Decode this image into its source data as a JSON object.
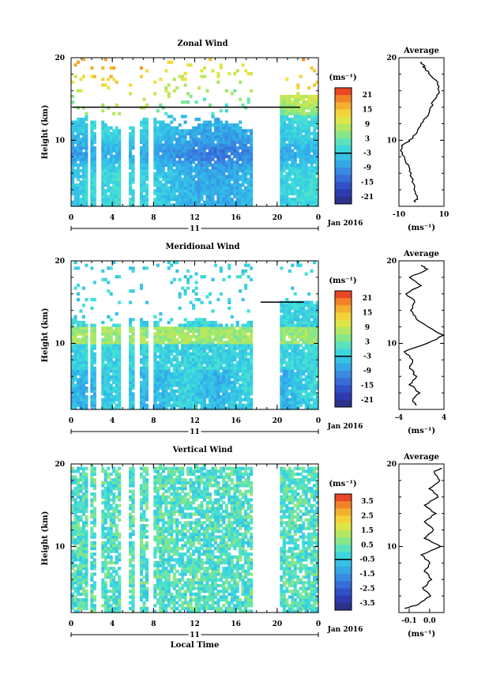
{
  "chart_data": [
    {
      "type": "heatmap",
      "title": "Zonal Wind",
      "ylabel": "Height (km)",
      "xlabel": "",
      "x_ticks": [
        "0",
        "4",
        "8",
        "12",
        "16",
        "20",
        "0"
      ],
      "y_ticks": [
        "10",
        "20"
      ],
      "ylim": [
        2,
        20
      ],
      "date_marker": "11",
      "date_label": "Jan 2016",
      "colorbar": {
        "unit": "(ms⁻¹)",
        "ticks": [
          "21",
          "15",
          "9",
          "3",
          "-3",
          "-9",
          "-15",
          "-21"
        ],
        "range": [
          -24,
          24
        ]
      },
      "profile": {
        "title": "Average",
        "xlabel": "(ms⁻¹)",
        "x_ticks": [
          "-10",
          "10"
        ],
        "y_ticks": [
          "10",
          "20"
        ],
        "xlim": [
          -10,
          10
        ],
        "heights": [
          2.5,
          3,
          4,
          5,
          6,
          7,
          8,
          9,
          9.5,
          10,
          11,
          12,
          13,
          14,
          15,
          16,
          17,
          18,
          18.5,
          19,
          19.5
        ],
        "values": [
          -3,
          -2,
          -3,
          -4,
          -5,
          -6,
          -8,
          -9,
          -8,
          -5,
          -2,
          0,
          3,
          4,
          6,
          8,
          7,
          4,
          2,
          1,
          0
        ]
      }
    },
    {
      "type": "heatmap",
      "title": "Meridional Wind",
      "ylabel": "Height (km)",
      "xlabel": "",
      "x_ticks": [
        "0",
        "4",
        "8",
        "12",
        "16",
        "20",
        "0"
      ],
      "y_ticks": [
        "10",
        "20"
      ],
      "ylim": [
        2,
        20
      ],
      "date_marker": "11",
      "date_label": "Jan 2016",
      "colorbar": {
        "unit": "(ms⁻¹)",
        "ticks": [
          "21",
          "15",
          "9",
          "3",
          "-3",
          "-9",
          "-15",
          "-21"
        ],
        "range": [
          -24,
          24
        ]
      },
      "profile": {
        "title": "Average",
        "xlabel": "(ms⁻¹)",
        "x_ticks": [
          "-4",
          "4"
        ],
        "y_ticks": [
          "10",
          "20"
        ],
        "xlim": [
          -4,
          4
        ],
        "heights": [
          2.5,
          3,
          4,
          5,
          6,
          7,
          8,
          9,
          10,
          11,
          12,
          13,
          14,
          15,
          16,
          17,
          18,
          19,
          19.5
        ],
        "values": [
          -1,
          -1.5,
          -0.5,
          -2,
          -1,
          -2,
          -1.5,
          -3,
          1,
          4,
          1,
          -1,
          -2,
          -1,
          -3,
          0,
          -2,
          1,
          0
        ]
      }
    },
    {
      "type": "heatmap",
      "title": "Vertical Wind",
      "ylabel": "Height (km)",
      "xlabel": "Local Time",
      "x_ticks": [
        "0",
        "4",
        "8",
        "12",
        "16",
        "20",
        "0"
      ],
      "y_ticks": [
        "10",
        "20"
      ],
      "ylim": [
        2,
        20
      ],
      "date_marker": "11",
      "date_label": "Jan 2016",
      "colorbar": {
        "unit": "(ms⁻¹)",
        "ticks": [
          "3.5",
          "2.5",
          "1.5",
          "0.5",
          "-0.5",
          "-1.5",
          "-2.5",
          "-3.5"
        ],
        "range": [
          -4,
          4
        ]
      },
      "profile": {
        "title": "Average",
        "xlabel": "(ms⁻¹)",
        "x_ticks": [
          "-0.1",
          "0.0"
        ],
        "y_ticks": [
          "10",
          "20"
        ],
        "xlim": [
          -0.15,
          0.07
        ],
        "heights": [
          2.5,
          3,
          4,
          5,
          6,
          7,
          8,
          9,
          10,
          11,
          12,
          13,
          14,
          15,
          16,
          17,
          18,
          19,
          19.5
        ],
        "values": [
          -0.12,
          -0.05,
          0.0,
          -0.03,
          0.01,
          -0.02,
          0.0,
          -0.04,
          0.05,
          -0.02,
          0.02,
          -0.03,
          0.03,
          -0.02,
          0.04,
          0.0,
          0.05,
          0.02,
          0.06
        ]
      }
    }
  ]
}
